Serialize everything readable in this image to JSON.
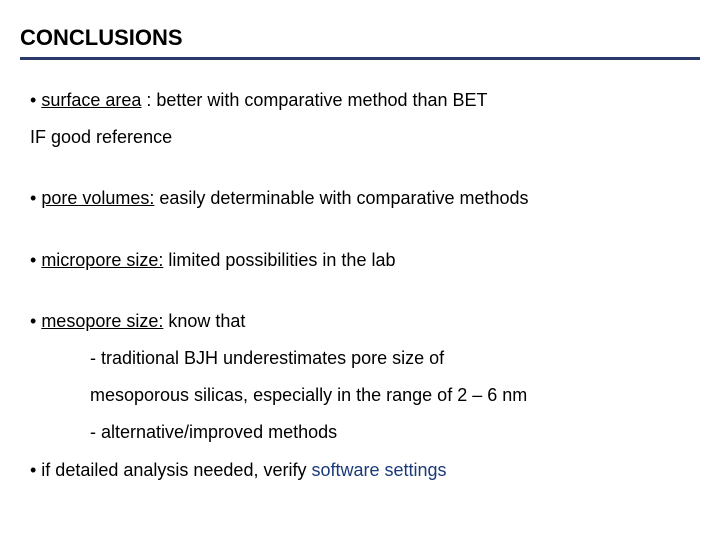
{
  "title": "CONCLUSIONS",
  "bullets": {
    "b1_prefix": "• ",
    "b1_underline": "surface area",
    "b1_rest": " : better with comparative method than BET",
    "b1_line2": "IF good reference",
    "b2_prefix": "• ",
    "b2_underline": "pore volumes:",
    "b2_rest": " easily determinable with comparative methods",
    "b3_prefix": "• ",
    "b3_underline": "micropore size:",
    "b3_rest": " limited possibilities in the lab",
    "b4_prefix": "• ",
    "b4_underline": "mesopore size:",
    "b4_rest": " know that",
    "b4_sub1": "- traditional BJH underestimates pore size of",
    "b4_sub2": "mesoporous silicas,  especially in the range of 2 – 6 nm",
    "b4_sub3": "- alternative/improved methods",
    "b5_prefix": "• if detailed analysis needed, verify ",
    "b5_blue": "software settings"
  },
  "colors": {
    "text": "#000000",
    "underline_bar": "#2a3a6a",
    "blue_text": "#1a3a7a",
    "background": "#ffffff"
  },
  "typography": {
    "title_fontsize": 22,
    "body_fontsize": 18,
    "font_family": "Arial"
  }
}
